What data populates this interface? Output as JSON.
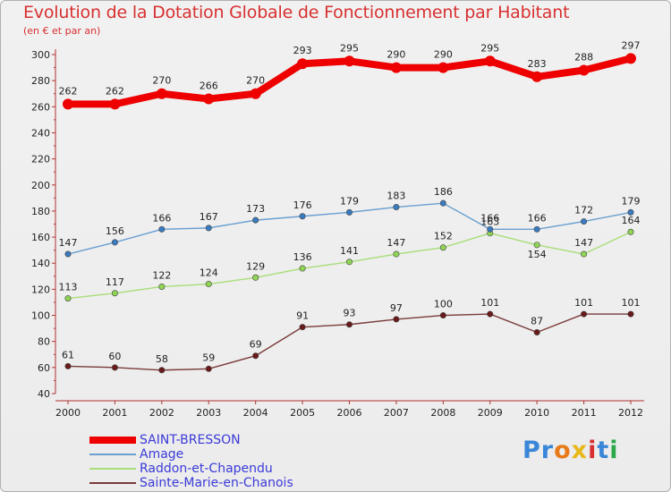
{
  "chart_data": {
    "type": "line",
    "title": "Evolution de la Dotation Globale de Fonctionnement par Habitant",
    "subtitle": "(en € et par an)",
    "xlabel": "",
    "ylabel": "",
    "ylim": [
      40,
      300
    ],
    "ytick_step": 20,
    "grid": false,
    "legend_position": "bottom-left",
    "x": [
      "2000",
      "2001",
      "2002",
      "2003",
      "2004",
      "2005",
      "2006",
      "2007",
      "2008",
      "2009",
      "2010",
      "2011",
      "2012"
    ],
    "series": [
      {
        "name": "SAINT-BRESSON",
        "color": "#ee0000",
        "point_color": "#ee0000",
        "values": [
          262,
          262,
          270,
          266,
          270,
          293,
          295,
          290,
          290,
          295,
          283,
          288,
          297
        ]
      },
      {
        "name": "Amage",
        "color": "#6a9fd0",
        "point_color": "#3a7ac0",
        "values": [
          147,
          156,
          166,
          167,
          173,
          176,
          179,
          183,
          186,
          166,
          166,
          172,
          179
        ]
      },
      {
        "name": "Raddon-et-Chapendu",
        "color": "#a8dd78",
        "point_color": "#8fd455",
        "values": [
          113,
          117,
          122,
          124,
          129,
          136,
          141,
          147,
          152,
          163,
          154,
          147,
          164
        ]
      },
      {
        "name": "Sainte-Marie-en-Chanois",
        "color": "#7a3a3a",
        "point_color": "#6a1a1a",
        "values": [
          61,
          60,
          58,
          59,
          69,
          91,
          93,
          97,
          100,
          101,
          87,
          101,
          101
        ]
      }
    ],
    "label_offsets": {
      "Amage": [
        "up",
        "up",
        "up",
        "up",
        "up",
        "up",
        "up",
        "up",
        "up",
        "up",
        "up",
        "up",
        "up"
      ],
      "Raddon-et-Chapendu": [
        "up",
        "up",
        "up",
        "up",
        "up",
        "up",
        "up",
        "up",
        "up",
        "up",
        "down",
        "up",
        "up"
      ]
    }
  },
  "logo": {
    "p1": "Pr",
    "p2": "o",
    "p3": "x",
    "p4": "i",
    "p5": "t",
    "p6": "i"
  }
}
